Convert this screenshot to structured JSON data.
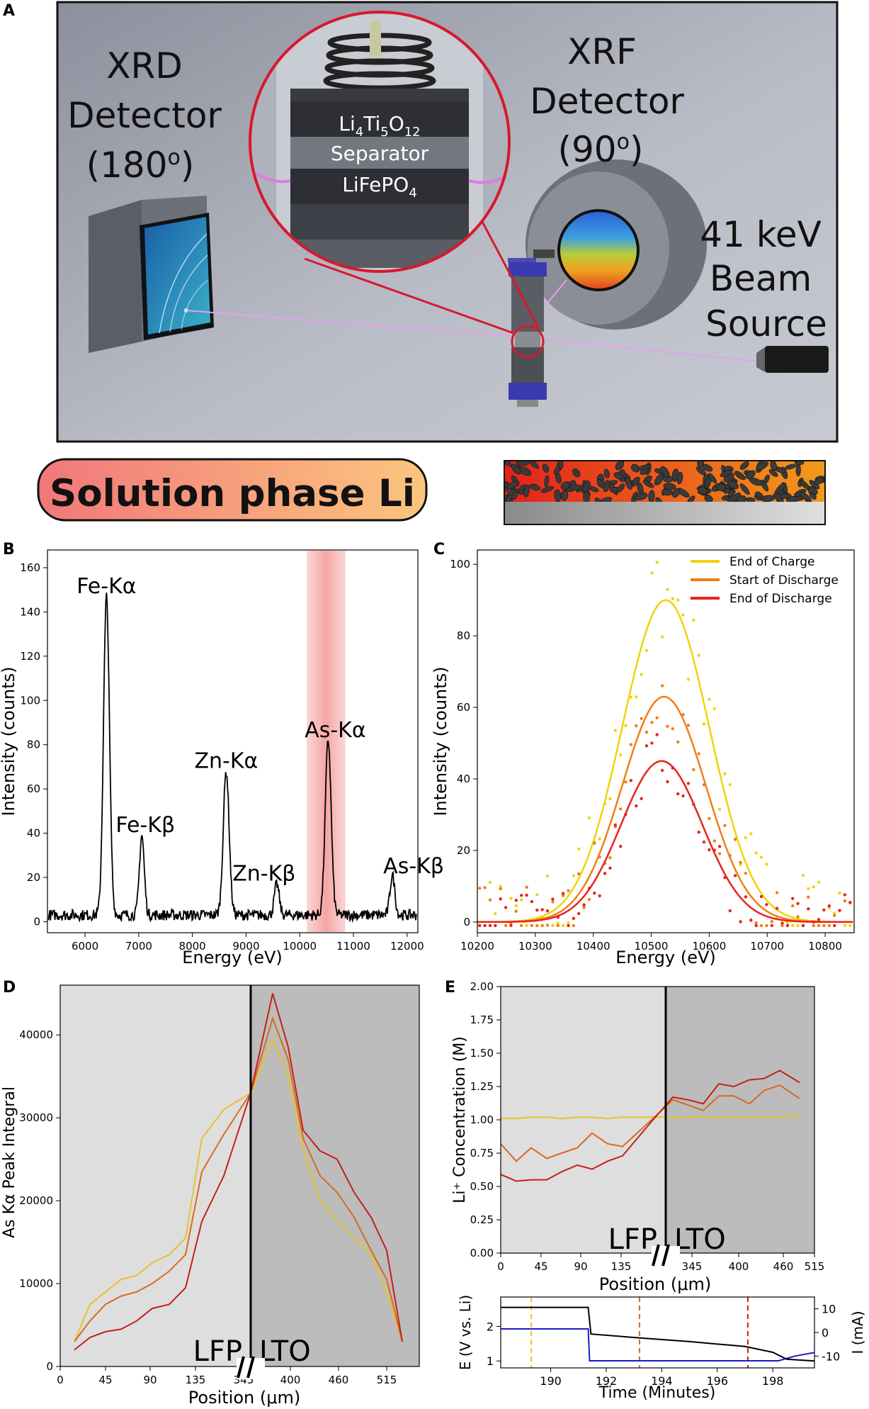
{
  "panel_labels": {
    "a": "A",
    "b": "B",
    "c": "C",
    "d": "D",
    "e": "E"
  },
  "panel_a": {
    "xrd_label": [
      "XRD",
      "Detector",
      "(180",
      "o",
      ")"
    ],
    "xrf_label": [
      "XRF",
      "Detector",
      "(90",
      "o",
      ")"
    ],
    "source_label": [
      "41 keV",
      "Beam",
      "Source"
    ],
    "stack_layers": {
      "lto": [
        "Li",
        "4",
        "Ti",
        "5",
        "O",
        "12"
      ],
      "separator": "Separator",
      "lfp": [
        "LiFePO",
        "4"
      ]
    }
  },
  "solution_banner": "Solution phase Li",
  "chart_data": [
    {
      "panel": "B",
      "type": "line",
      "xlabel": "Energy (eV)",
      "ylabel": "Intensity (counts)",
      "xlim": [
        5300,
        12200
      ],
      "ylim": [
        -5,
        168
      ],
      "xticks": [
        6000,
        7000,
        8000,
        9000,
        10000,
        11000,
        12000
      ],
      "yticks": [
        0,
        20,
        40,
        60,
        80,
        100,
        120,
        140,
        160
      ],
      "highlight_band": [
        10130,
        10850
      ],
      "peaks": [
        {
          "label": "Fe-Kα",
          "energy": 6400,
          "height": 144
        },
        {
          "label": "Fe-Kβ",
          "energy": 7058,
          "height": 36
        },
        {
          "label": "Zn-Kα",
          "energy": 8630,
          "height": 65
        },
        {
          "label": "Zn-Kβ",
          "energy": 9572,
          "height": 14
        },
        {
          "label": "As-Kα",
          "energy": 10530,
          "height": 79
        },
        {
          "label": "As-Kβ",
          "energy": 11726,
          "height": 18
        }
      ]
    },
    {
      "panel": "C",
      "type": "scatter",
      "xlabel": "Energy (eV)",
      "ylabel": "Intensity (counts)",
      "xlim": [
        10200,
        10850
      ],
      "ylim": [
        -3,
        104
      ],
      "xticks": [
        10200,
        10300,
        10400,
        10500,
        10600,
        10700,
        10800
      ],
      "yticks": [
        0,
        20,
        40,
        60,
        80,
        100
      ],
      "legend_position": "top-right",
      "series": [
        {
          "name": "End of Charge",
          "color": "#f2d20c",
          "center": 10525,
          "amplitude": 90,
          "sigma": 75
        },
        {
          "name": "Start of Discharge",
          "color": "#f07f14",
          "center": 10522,
          "amplitude": 63,
          "sigma": 72
        },
        {
          "name": "End of Discharge",
          "color": "#e8241d",
          "center": 10518,
          "amplitude": 45,
          "sigma": 70
        }
      ]
    },
    {
      "panel": "D",
      "type": "line",
      "xlabel": "Position (μm)",
      "ylabel": "As Kα Peak Integral",
      "ylim": [
        0,
        46000
      ],
      "yticks": [
        0,
        10000,
        20000,
        30000,
        40000
      ],
      "xticks": [
        "0",
        "45",
        "90",
        "135",
        "345",
        "400",
        "460",
        "515"
      ],
      "region_labels": [
        "LFP",
        "LTO"
      ],
      "series": [
        {
          "color": "#e8c22a",
          "values": [
            3000,
            7500,
            9000,
            10500,
            11000,
            12500,
            13500,
            15500,
            27500,
            31000,
            33000,
            39500,
            35000,
            26000,
            20000,
            17500,
            15500,
            13500,
            9000,
            3000
          ]
        },
        {
          "color": "#d96a1f",
          "values": [
            3000,
            5500,
            7500,
            8500,
            9000,
            10000,
            11500,
            13500,
            23500,
            28000,
            33000,
            42000,
            37000,
            27500,
            23000,
            21000,
            18000,
            14000,
            10500,
            3000
          ]
        },
        {
          "color": "#c42018",
          "values": [
            2000,
            3500,
            4200,
            4500,
            5500,
            7000,
            7500,
            9500,
            17500,
            23000,
            33000,
            45000,
            38500,
            28500,
            26000,
            25000,
            21000,
            18000,
            14000,
            3000
          ]
        }
      ]
    },
    {
      "panel": "E",
      "type": "line",
      "xlabel": "Position (μm)",
      "ylabel": "Li⁺ Concentration (M)",
      "ylim": [
        0,
        2
      ],
      "yticks": [
        "0.00",
        "0.25",
        "0.50",
        "0.75",
        "1.00",
        "1.25",
        "1.50",
        "1.75",
        "2.00"
      ],
      "xticks": [
        "0",
        "45",
        "90",
        "135",
        "345",
        "400",
        "460",
        "515"
      ],
      "region_labels": [
        "LFP",
        "LTO"
      ],
      "series": [
        {
          "color": "#e8c22a",
          "values": [
            1.01,
            1.01,
            1.02,
            1.02,
            1.01,
            1.02,
            1.02,
            1.01,
            1.02,
            1.02,
            1.02,
            1.02,
            1.02,
            1.02,
            1.02,
            1.02,
            1.02,
            1.02,
            1.03
          ]
        },
        {
          "color": "#d96a1f",
          "values": [
            0.82,
            0.69,
            0.79,
            0.71,
            0.75,
            0.79,
            0.9,
            0.82,
            0.8,
            1.01,
            1.15,
            1.11,
            1.07,
            1.18,
            1.18,
            1.12,
            1.22,
            1.26,
            1.16
          ]
        },
        {
          "color": "#c42018",
          "values": [
            0.59,
            0.54,
            0.55,
            0.55,
            0.61,
            0.66,
            0.63,
            0.69,
            0.73,
            1.0,
            1.17,
            1.15,
            1.12,
            1.27,
            1.25,
            1.3,
            1.31,
            1.37,
            1.28
          ]
        }
      ]
    },
    {
      "panel": "E-inset",
      "type": "line",
      "xlabel": "Time (Minutes)",
      "ylabel_left": "E (V vs. Li)",
      "ylabel_right": "I (mA)",
      "xlim": [
        188.2,
        199.5
      ],
      "xticks": [
        190,
        192,
        194,
        196,
        198
      ],
      "yticks_left": [
        1,
        2
      ],
      "yticks_right": [
        10,
        0,
        -10
      ],
      "markers": [
        {
          "time": 189.3,
          "color": "#e8c22a"
        },
        {
          "time": 193.2,
          "color": "#d96a1f"
        },
        {
          "time": 197.1,
          "color": "#c42018"
        }
      ],
      "series": [
        {
          "name": "E",
          "color": "#000000",
          "points": [
            [
              188.2,
              2.55
            ],
            [
              191.35,
              2.55
            ],
            [
              191.45,
              1.78
            ],
            [
              193,
              1.68
            ],
            [
              195,
              1.56
            ],
            [
              197,
              1.42
            ],
            [
              198.0,
              1.25
            ],
            [
              198.5,
              1.05
            ],
            [
              199.5,
              1.0
            ]
          ]
        },
        {
          "name": "I",
          "color": "#1a1acc",
          "points": [
            [
              188.2,
              1.5
            ],
            [
              191.35,
              1.5
            ],
            [
              191.4,
              -12.0
            ],
            [
              198.2,
              -12.0
            ],
            [
              198.8,
              -10.0
            ],
            [
              199.5,
              -8.5
            ]
          ]
        }
      ]
    }
  ]
}
